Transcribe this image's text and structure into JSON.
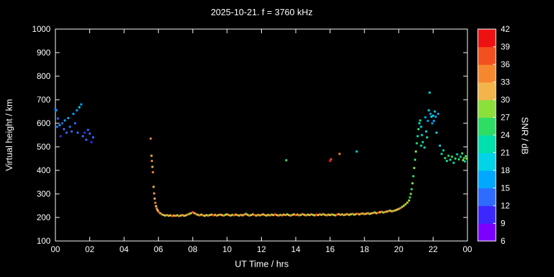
{
  "chart_data": {
    "type": "scatter",
    "title": "2025-10-21. f = 3760 kHz",
    "xlabel": "UT Time / hrs",
    "ylabel": "Virtual height / km",
    "xlim": [
      0,
      24
    ],
    "ylim": [
      100,
      1000
    ],
    "x_tick_values": [
      0,
      2,
      4,
      6,
      8,
      10,
      12,
      14,
      16,
      18,
      20,
      22,
      24
    ],
    "x_tick_labels": [
      "00",
      "02",
      "04",
      "06",
      "08",
      "10",
      "12",
      "14",
      "16",
      "18",
      "20",
      "22",
      "00"
    ],
    "y_ticks": [
      100,
      200,
      300,
      400,
      500,
      600,
      700,
      800,
      900,
      1000
    ],
    "colorbar_label": "SNR / dB",
    "colorbar_lim": [
      6,
      42
    ],
    "colorbar_ticks": [
      6,
      9,
      12,
      15,
      18,
      21,
      24,
      27,
      30,
      33,
      36,
      39,
      42
    ],
    "band_colors": [
      "#7d00ff",
      "#3c28ff",
      "#2e6bff",
      "#00a8ff",
      "#00d4e6",
      "#00e0ac",
      "#2edd64",
      "#8ce03c",
      "#f2b44b",
      "#f5882e",
      "#f2501e",
      "#ee1111"
    ],
    "points": [
      [
        0.0,
        660,
        12
      ],
      [
        0.05,
        655,
        15
      ],
      [
        0.1,
        585,
        12
      ],
      [
        0.15,
        620,
        12
      ],
      [
        0.25,
        592,
        15
      ],
      [
        0.3,
        545,
        9
      ],
      [
        0.4,
        600,
        12
      ],
      [
        0.5,
        575,
        12
      ],
      [
        0.55,
        612,
        15
      ],
      [
        0.65,
        560,
        12
      ],
      [
        0.75,
        622,
        15
      ],
      [
        0.85,
        585,
        12
      ],
      [
        0.95,
        565,
        12
      ],
      [
        1.05,
        640,
        15
      ],
      [
        1.15,
        600,
        12
      ],
      [
        1.25,
        655,
        15
      ],
      [
        1.3,
        560,
        12
      ],
      [
        1.4,
        668,
        18
      ],
      [
        1.5,
        680,
        15
      ],
      [
        1.6,
        545,
        12
      ],
      [
        1.7,
        560,
        9
      ],
      [
        1.8,
        530,
        12
      ],
      [
        1.9,
        572,
        12
      ],
      [
        2.0,
        556,
        12
      ],
      [
        2.1,
        520,
        9
      ],
      [
        2.2,
        540,
        12
      ],
      [
        5.55,
        535,
        33
      ],
      [
        5.6,
        462,
        30
      ],
      [
        5.62,
        440,
        33
      ],
      [
        5.65,
        415,
        30
      ],
      [
        5.68,
        392,
        33
      ],
      [
        5.72,
        330,
        30
      ],
      [
        5.75,
        302,
        33
      ],
      [
        5.78,
        280,
        30
      ],
      [
        5.82,
        262,
        33
      ],
      [
        5.86,
        248,
        30
      ],
      [
        5.9,
        238,
        33
      ],
      [
        5.95,
        231,
        30
      ],
      [
        6.0,
        225,
        33
      ],
      [
        6.1,
        218,
        30
      ],
      [
        6.2,
        213,
        34
      ],
      [
        6.3,
        210,
        28
      ],
      [
        6.4,
        208,
        31
      ],
      [
        6.5,
        210,
        35
      ],
      [
        6.6,
        207,
        29
      ],
      [
        6.7,
        209,
        32
      ],
      [
        6.8,
        206,
        36
      ],
      [
        6.9,
        208,
        30
      ],
      [
        7.0,
        207,
        33
      ],
      [
        7.1,
        209,
        27
      ],
      [
        7.2,
        206,
        33
      ],
      [
        7.3,
        208,
        30
      ],
      [
        7.4,
        210,
        34
      ],
      [
        7.5,
        207,
        28
      ],
      [
        7.6,
        209,
        31
      ],
      [
        7.7,
        212,
        35
      ],
      [
        7.8,
        215,
        29
      ],
      [
        7.9,
        218,
        32
      ],
      [
        8.0,
        222,
        36
      ],
      [
        8.1,
        218,
        30
      ],
      [
        8.2,
        214,
        33
      ],
      [
        8.3,
        211,
        27
      ],
      [
        8.4,
        209,
        33
      ],
      [
        8.5,
        212,
        30
      ],
      [
        8.6,
        209,
        34
      ],
      [
        8.7,
        207,
        28
      ],
      [
        8.8,
        210,
        31
      ],
      [
        8.9,
        208,
        35
      ],
      [
        9.0,
        210,
        29
      ],
      [
        9.1,
        212,
        32
      ],
      [
        9.2,
        209,
        36
      ],
      [
        9.3,
        211,
        30
      ],
      [
        9.4,
        208,
        33
      ],
      [
        9.5,
        210,
        27
      ],
      [
        9.6,
        212,
        33
      ],
      [
        9.7,
        210,
        30
      ],
      [
        9.8,
        208,
        34
      ],
      [
        9.9,
        211,
        28
      ],
      [
        10.0,
        213,
        31
      ],
      [
        10.1,
        210,
        35
      ],
      [
        10.2,
        208,
        29
      ],
      [
        10.3,
        211,
        32
      ],
      [
        10.4,
        209,
        36
      ],
      [
        10.5,
        212,
        30
      ],
      [
        10.6,
        210,
        33
      ],
      [
        10.7,
        208,
        27
      ],
      [
        10.8,
        211,
        33
      ],
      [
        10.9,
        209,
        30
      ],
      [
        11.0,
        212,
        34
      ],
      [
        11.1,
        215,
        28
      ],
      [
        11.2,
        211,
        31
      ],
      [
        11.3,
        208,
        35
      ],
      [
        11.4,
        210,
        29
      ],
      [
        11.5,
        213,
        32
      ],
      [
        11.6,
        210,
        36
      ],
      [
        11.7,
        208,
        30
      ],
      [
        11.8,
        211,
        33
      ],
      [
        11.9,
        209,
        27
      ],
      [
        12.0,
        211,
        33
      ],
      [
        12.1,
        213,
        30
      ],
      [
        12.2,
        210,
        34
      ],
      [
        12.3,
        208,
        28
      ],
      [
        12.4,
        211,
        31
      ],
      [
        12.5,
        209,
        35
      ],
      [
        12.6,
        212,
        29
      ],
      [
        12.7,
        210,
        32
      ],
      [
        12.8,
        213,
        36
      ],
      [
        12.9,
        210,
        30
      ],
      [
        13.0,
        208,
        33
      ],
      [
        13.1,
        211,
        27
      ],
      [
        13.2,
        209,
        33
      ],
      [
        13.3,
        212,
        30
      ],
      [
        13.4,
        210,
        34
      ],
      [
        13.5,
        213,
        28
      ],
      [
        13.6,
        210,
        31
      ],
      [
        13.7,
        208,
        35
      ],
      [
        13.8,
        211,
        29
      ],
      [
        13.9,
        213,
        32
      ],
      [
        14.0,
        210,
        36
      ],
      [
        14.1,
        212,
        30
      ],
      [
        14.2,
        209,
        33
      ],
      [
        14.3,
        211,
        27
      ],
      [
        14.4,
        214,
        33
      ],
      [
        14.5,
        211,
        30
      ],
      [
        14.6,
        209,
        34
      ],
      [
        14.7,
        212,
        28
      ],
      [
        14.8,
        210,
        31
      ],
      [
        14.9,
        213,
        35
      ],
      [
        15.0,
        211,
        29
      ],
      [
        15.1,
        209,
        32
      ],
      [
        15.2,
        212,
        36
      ],
      [
        15.3,
        210,
        30
      ],
      [
        15.4,
        213,
        33
      ],
      [
        15.5,
        211,
        27
      ],
      [
        15.6,
        214,
        33
      ],
      [
        15.7,
        211,
        30
      ],
      [
        15.8,
        209,
        34
      ],
      [
        15.9,
        212,
        28
      ],
      [
        16.0,
        210,
        31
      ],
      [
        16.1,
        213,
        35
      ],
      [
        16.2,
        211,
        29
      ],
      [
        16.3,
        209,
        32
      ],
      [
        16.4,
        212,
        36
      ],
      [
        16.5,
        214,
        30
      ],
      [
        16.6,
        211,
        33
      ],
      [
        16.7,
        213,
        27
      ],
      [
        16.8,
        210,
        33
      ],
      [
        16.9,
        212,
        30
      ],
      [
        17.0,
        214,
        34
      ],
      [
        17.1,
        211,
        28
      ],
      [
        17.2,
        213,
        31
      ],
      [
        17.3,
        215,
        35
      ],
      [
        17.4,
        212,
        29
      ],
      [
        17.5,
        214,
        32
      ],
      [
        17.6,
        216,
        36
      ],
      [
        17.7,
        213,
        30
      ],
      [
        17.8,
        215,
        33
      ],
      [
        17.9,
        217,
        27
      ],
      [
        18.0,
        214,
        33
      ],
      [
        18.1,
        216,
        30
      ],
      [
        18.2,
        218,
        34
      ],
      [
        18.3,
        215,
        28
      ],
      [
        18.4,
        217,
        31
      ],
      [
        18.5,
        219,
        35
      ],
      [
        18.6,
        221,
        29
      ],
      [
        18.7,
        218,
        32
      ],
      [
        18.8,
        220,
        36
      ],
      [
        18.9,
        222,
        30
      ],
      [
        19.0,
        224,
        33
      ],
      [
        19.1,
        221,
        27
      ],
      [
        19.2,
        223,
        33
      ],
      [
        19.3,
        225,
        30
      ],
      [
        19.4,
        227,
        34
      ],
      [
        19.5,
        229,
        28
      ],
      [
        19.6,
        226,
        31
      ],
      [
        19.7,
        228,
        35
      ],
      [
        19.8,
        230,
        29
      ],
      [
        19.9,
        233,
        32
      ],
      [
        20.0,
        236,
        30
      ],
      [
        20.1,
        240,
        33
      ],
      [
        20.2,
        245,
        27
      ],
      [
        20.3,
        250,
        30
      ],
      [
        20.4,
        256,
        28
      ],
      [
        20.5,
        263,
        30
      ],
      [
        20.6,
        272,
        27
      ],
      [
        20.65,
        285,
        24
      ],
      [
        20.7,
        300,
        27
      ],
      [
        20.75,
        320,
        24
      ],
      [
        20.8,
        345,
        27
      ],
      [
        20.85,
        375,
        24
      ],
      [
        20.9,
        410,
        27
      ],
      [
        20.95,
        445,
        24
      ],
      [
        21.0,
        480,
        27
      ],
      [
        21.05,
        515,
        24
      ],
      [
        21.1,
        545,
        21
      ],
      [
        21.15,
        575,
        24
      ],
      [
        21.2,
        600,
        21
      ],
      [
        13.45,
        443,
        24
      ],
      [
        16.0,
        440,
        39
      ],
      [
        16.05,
        447,
        36
      ],
      [
        16.55,
        470,
        33
      ],
      [
        17.55,
        480,
        18
      ],
      [
        21.25,
        612,
        21
      ],
      [
        21.3,
        585,
        18
      ],
      [
        21.3,
        505,
        21
      ],
      [
        21.35,
        550,
        18
      ],
      [
        21.4,
        520,
        21
      ],
      [
        21.5,
        497,
        21
      ],
      [
        21.55,
        625,
        15
      ],
      [
        21.6,
        565,
        18
      ],
      [
        21.65,
        540,
        21
      ],
      [
        21.7,
        610,
        15
      ],
      [
        21.75,
        655,
        18
      ],
      [
        21.8,
        730,
        18
      ],
      [
        21.85,
        640,
        15
      ],
      [
        21.9,
        628,
        18
      ],
      [
        21.95,
        600,
        15
      ],
      [
        22.0,
        632,
        18
      ],
      [
        22.05,
        610,
        15
      ],
      [
        22.1,
        650,
        18
      ],
      [
        22.15,
        628,
        15
      ],
      [
        22.2,
        560,
        18
      ],
      [
        22.3,
        640,
        15
      ],
      [
        22.4,
        505,
        18
      ],
      [
        22.5,
        470,
        21
      ],
      [
        22.6,
        485,
        21
      ],
      [
        22.7,
        452,
        24
      ],
      [
        22.8,
        440,
        21
      ],
      [
        22.9,
        462,
        24
      ],
      [
        23.0,
        445,
        21
      ],
      [
        23.1,
        458,
        24
      ],
      [
        23.2,
        432,
        21
      ],
      [
        23.3,
        450,
        24
      ],
      [
        23.4,
        468,
        21
      ],
      [
        23.5,
        447,
        24
      ],
      [
        23.6,
        458,
        21
      ],
      [
        23.7,
        472,
        24
      ],
      [
        23.75,
        443,
        27
      ],
      [
        23.8,
        452,
        24
      ],
      [
        23.85,
        438,
        21
      ],
      [
        23.9,
        460,
        24
      ],
      [
        23.95,
        450,
        27
      ]
    ]
  }
}
